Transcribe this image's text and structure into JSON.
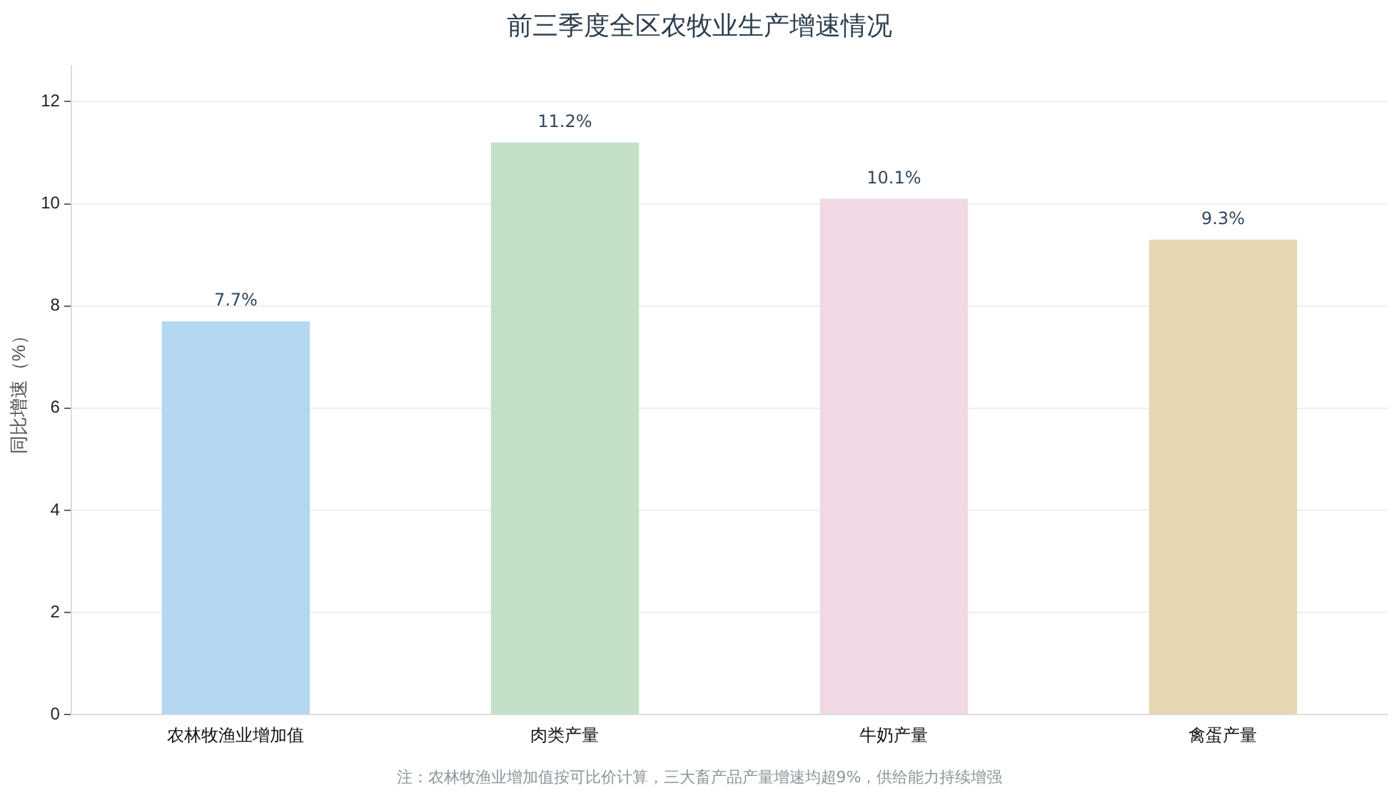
{
  "chart_data": {
    "type": "bar",
    "title": "前三季度全区农牧业生产增速情况",
    "ylabel": "同比增速（%）",
    "categories": [
      "农林牧渔业增加值",
      "肉类产量",
      "牛奶产量",
      "禽蛋产量"
    ],
    "values": [
      7.7,
      11.2,
      10.1,
      9.3
    ],
    "colors": [
      "#b3d7f0",
      "#c3e0c7",
      "#f0d8e4",
      "#e5d8b3"
    ],
    "value_labels": [
      "7.7%",
      "11.2%",
      "10.1%",
      "9.3%"
    ],
    "ylim": [
      0,
      12.7
    ],
    "yticks": [
      0,
      2,
      4,
      6,
      8,
      10,
      12
    ],
    "grid": "y",
    "legend": false,
    "annotations": [
      "注：农林牧渔业增加值按可比价计算，三大畜产品产量增速均超9%，供给能力持续增强"
    ]
  }
}
